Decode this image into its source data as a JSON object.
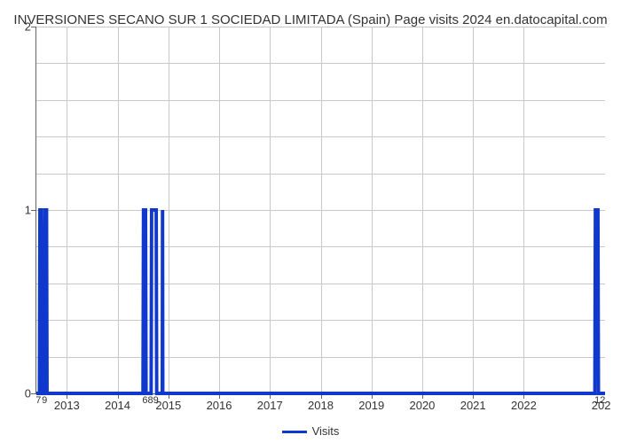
{
  "chart": {
    "type": "line",
    "title": "INVERSIONES SECANO SUR 1 SOCIEDAD LIMITADA (Spain) Page visits 2024 en.datocapital.com",
    "title_fontsize": 15,
    "title_color": "#333333",
    "background_color": "#ffffff",
    "grid_color": "#c8c8c8",
    "axis_color": "#666666",
    "line_color": "#1138cc",
    "line_width": 2.5,
    "xlim": [
      2012.4,
      2023.6
    ],
    "ylim": [
      0,
      2
    ],
    "y_major_ticks": [
      0,
      1,
      2
    ],
    "y_minor_count_between": 4,
    "x_major_ticks": [
      2013,
      2014,
      2015,
      2016,
      2017,
      2018,
      2019,
      2020,
      2021,
      2022
    ],
    "x_minor_labels": [
      {
        "x": 2012.44,
        "label": "7"
      },
      {
        "x": 2012.56,
        "label": "9"
      },
      {
        "x": 2014.54,
        "label": "6"
      },
      {
        "x": 2014.7,
        "label": "89"
      },
      {
        "x": 2023.5,
        "label": "12"
      }
    ],
    "x_major_label_right": {
      "x": 2023.6,
      "label": "202"
    },
    "series": [
      {
        "name": "Visits",
        "color": "#1138cc",
        "points": [
          {
            "x": 2012.4,
            "y": 0
          },
          {
            "x": 2012.46,
            "y": 0
          },
          {
            "x": 2012.47,
            "y": 1
          },
          {
            "x": 2012.5,
            "y": 1
          },
          {
            "x": 2012.51,
            "y": 0
          },
          {
            "x": 2012.56,
            "y": 0
          },
          {
            "x": 2012.57,
            "y": 1
          },
          {
            "x": 2012.6,
            "y": 1
          },
          {
            "x": 2012.61,
            "y": 0
          },
          {
            "x": 2014.5,
            "y": 0
          },
          {
            "x": 2014.51,
            "y": 1
          },
          {
            "x": 2014.55,
            "y": 1
          },
          {
            "x": 2014.56,
            "y": 0
          },
          {
            "x": 2014.66,
            "y": 0
          },
          {
            "x": 2014.67,
            "y": 1
          },
          {
            "x": 2014.76,
            "y": 1
          },
          {
            "x": 2014.77,
            "y": 0
          },
          {
            "x": 2014.88,
            "y": 0
          },
          {
            "x": 2014.885,
            "y": 1
          },
          {
            "x": 2014.89,
            "y": 0
          },
          {
            "x": 2023.4,
            "y": 0
          },
          {
            "x": 2023.41,
            "y": 1
          },
          {
            "x": 2023.46,
            "y": 1
          },
          {
            "x": 2023.47,
            "y": 0
          },
          {
            "x": 2023.6,
            "y": 0
          }
        ]
      }
    ],
    "legend": {
      "position": "bottom-center",
      "items": [
        {
          "label": "Visits",
          "color": "#1138cc"
        }
      ]
    }
  }
}
